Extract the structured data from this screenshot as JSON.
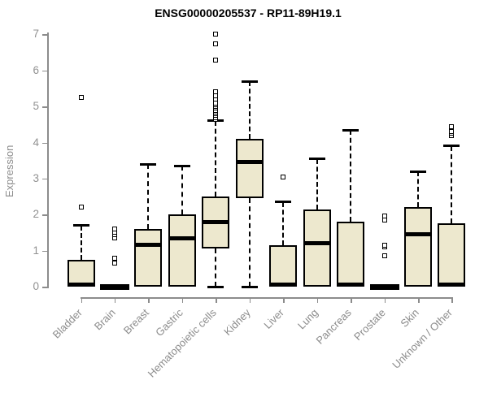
{
  "title": "ENSG00000205537 - RP11-89H19.1",
  "colors": {
    "box_fill": "#EDE8CE",
    "box_border": "#000000",
    "axis": "#8C8C8C",
    "title_text": "#000000",
    "background": "#FFFFFF"
  },
  "chart_data": {
    "type": "boxplot",
    "title": "ENSG00000205537 - RP11-89H19.1",
    "xlabel": "",
    "ylabel": "Expression",
    "ylim": [
      0,
      7
    ],
    "yticks": [
      0,
      1,
      2,
      3,
      4,
      5,
      6,
      7
    ],
    "grid": false,
    "legend": "none",
    "categories": [
      "Bladder",
      "Brain",
      "Breast",
      "Gastric",
      "Hematopoietic cells",
      "Kidney",
      "Liver",
      "Lung",
      "Pancreas",
      "Prostate",
      "Skin",
      "Unknown / Other"
    ],
    "series": [
      {
        "name": "Bladder",
        "whisker_low": 0,
        "q1": 0,
        "median": 0.05,
        "q3": 0.75,
        "whisker_high": 1.7,
        "outliers": [
          2.2,
          5.25
        ]
      },
      {
        "name": "Brain",
        "whisker_low": 0,
        "q1": 0,
        "median": 0,
        "q3": 0,
        "whisker_high": 0,
        "outliers": [
          0.65,
          0.8,
          1.35,
          1.45,
          1.5,
          1.6
        ]
      },
      {
        "name": "Breast",
        "whisker_low": 0,
        "q1": 0,
        "median": 1.15,
        "q3": 1.6,
        "whisker_high": 3.4,
        "outliers": []
      },
      {
        "name": "Gastric",
        "whisker_low": 0,
        "q1": 0,
        "median": 1.35,
        "q3": 2.0,
        "whisker_high": 3.35,
        "outliers": []
      },
      {
        "name": "Hematopoietic cells",
        "whisker_low": 0,
        "q1": 1.05,
        "median": 1.8,
        "q3": 2.5,
        "whisker_high": 4.6,
        "outliers": [
          4.65,
          4.7,
          4.75,
          4.8,
          4.85,
          4.9,
          4.95,
          5.0,
          5.05,
          5.1,
          5.2,
          5.3,
          5.4,
          6.3,
          6.75,
          7.0
        ]
      },
      {
        "name": "Kidney",
        "whisker_low": 0,
        "q1": 2.45,
        "median": 3.45,
        "q3": 4.1,
        "whisker_high": 5.7,
        "outliers": []
      },
      {
        "name": "Liver",
        "whisker_low": 0,
        "q1": 0,
        "median": 0.05,
        "q3": 1.15,
        "whisker_high": 2.35,
        "outliers": [
          3.05
        ]
      },
      {
        "name": "Lung",
        "whisker_low": 0,
        "q1": 0,
        "median": 1.2,
        "q3": 2.15,
        "whisker_high": 3.55,
        "outliers": []
      },
      {
        "name": "Pancreas",
        "whisker_low": 0,
        "q1": 0,
        "median": 0.05,
        "q3": 1.8,
        "whisker_high": 4.35,
        "outliers": []
      },
      {
        "name": "Prostate",
        "whisker_low": 0,
        "q1": 0,
        "median": 0,
        "q3": 0,
        "whisker_high": 0,
        "outliers": [
          0.85,
          1.1,
          1.15,
          1.85,
          1.95
        ]
      },
      {
        "name": "Skin",
        "whisker_low": 0,
        "q1": 0,
        "median": 1.45,
        "q3": 2.2,
        "whisker_high": 3.2,
        "outliers": []
      },
      {
        "name": "Unknown / Other",
        "whisker_low": 0,
        "q1": 0,
        "median": 0.05,
        "q3": 1.75,
        "whisker_high": 3.9,
        "outliers": [
          4.2,
          4.25,
          4.3,
          4.45
        ]
      }
    ]
  }
}
